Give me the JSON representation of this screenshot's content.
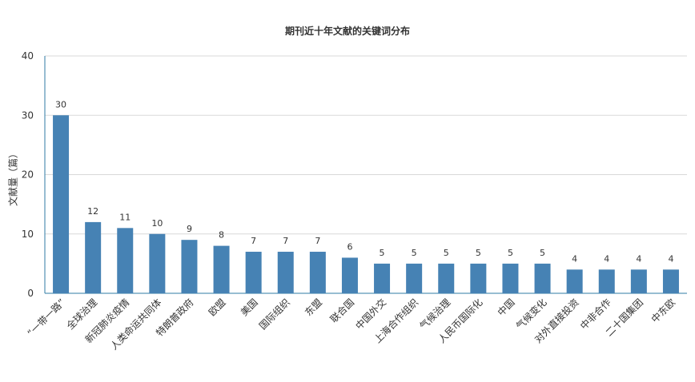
{
  "chart_data": {
    "type": "bar",
    "title": "期刊近十年文献的关键词分布",
    "ylabel": "文献量（篇）",
    "xlabel": "",
    "ylim": [
      0,
      40
    ],
    "yticks": [
      0,
      10,
      20,
      30,
      40
    ],
    "grid": true,
    "bar_color": "#4682b4",
    "categories": [
      "“一带一路”",
      "全球治理",
      "新冠肺炎疫情",
      "人类命运共同体",
      "特朗普政府",
      "欧盟",
      "美国",
      "国际组织",
      "东盟",
      "联合国",
      "中国外交",
      "上海合作组织",
      "气候治理",
      "人民币国际化",
      "中国",
      "气候变化",
      "对外直接投资",
      "中非合作",
      "二十国集团",
      "中东欧"
    ],
    "values": [
      30,
      12,
      11,
      10,
      9,
      8,
      7,
      7,
      7,
      6,
      5,
      5,
      5,
      5,
      5,
      5,
      4,
      4,
      4,
      4
    ]
  }
}
